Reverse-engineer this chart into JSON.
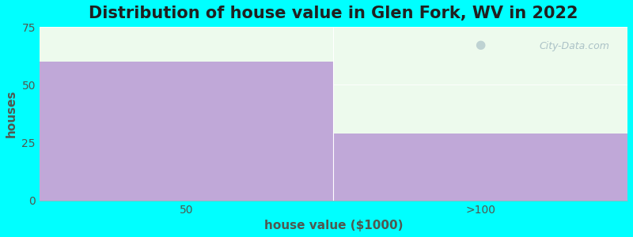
{
  "title": "Distribution of house value in Glen Fork, WV in 2022",
  "categories": [
    "50",
    ">100"
  ],
  "values": [
    60,
    29
  ],
  "bar_color": "#c0a8d8",
  "background_color": "#00ffff",
  "plot_bg_color": "#edfaed",
  "xlabel": "house value ($1000)",
  "ylabel": "houses",
  "ylim": [
    0,
    75
  ],
  "yticks": [
    0,
    25,
    50,
    75
  ],
  "title_fontsize": 15,
  "axis_label_fontsize": 11,
  "tick_fontsize": 10,
  "watermark": "City-Data.com",
  "watermark_color": "#a0b8c0",
  "text_color": "#505850"
}
